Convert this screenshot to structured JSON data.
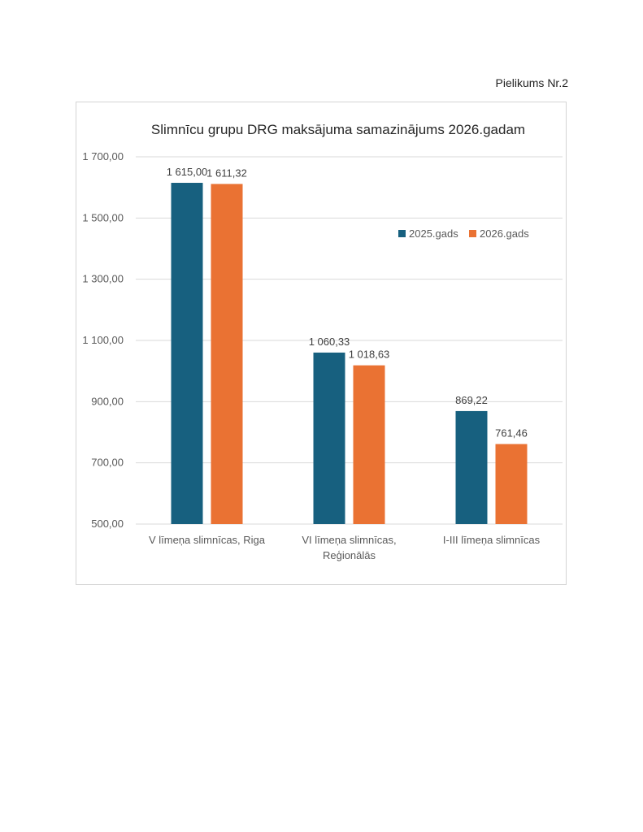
{
  "page": {
    "attachment_label": "Pielikums Nr.2"
  },
  "chart_data": {
    "type": "bar",
    "title": "Slimnīcu grupu DRG maksājuma samazinājums 2026.gadam",
    "categories": [
      [
        "V līmeņa slimnīcas, Riga"
      ],
      [
        "VI līmeņa slimnīcas,",
        "Reģionālās"
      ],
      [
        "I-III līmeņa slimnīcas"
      ]
    ],
    "series": [
      {
        "name": "2025.gads",
        "color": "#17607f",
        "values": [
          1615.0,
          1060.33,
          869.22
        ],
        "labels": [
          "1 615,00",
          "1 060,33",
          "869,22"
        ]
      },
      {
        "name": "2026.gads",
        "color": "#ea7233",
        "values": [
          1611.32,
          1018.63,
          761.46
        ],
        "labels": [
          "1 611,32",
          "1 018,63",
          "761,46"
        ]
      }
    ],
    "ylim": [
      500,
      1700
    ],
    "yticks": [
      500,
      700,
      900,
      1100,
      1300,
      1500,
      1700
    ],
    "ytick_labels": [
      "500,00",
      "700,00",
      "900,00",
      "1 100,00",
      "1 300,00",
      "1 500,00",
      "1 700,00"
    ],
    "xlabel": "",
    "ylabel": "",
    "grid": true,
    "legend_position": "top-right"
  }
}
